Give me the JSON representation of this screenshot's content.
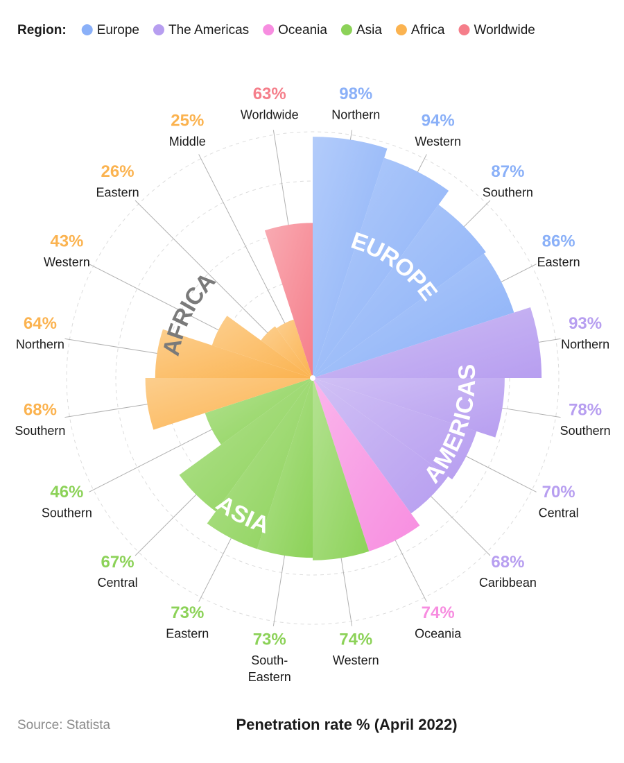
{
  "chart_data": {
    "type": "polar_bar",
    "legend_title": "Region:",
    "caption": "Penetration rate % (April 2022)",
    "source": "Source: Statista",
    "rlim": [
      0,
      100
    ],
    "rticks": [
      40,
      60,
      80,
      100
    ],
    "grid": true,
    "series": [
      {
        "name": "Europe",
        "color": "#8ab0f8",
        "label": "EUROPE",
        "label_color": "#ffffff",
        "categories": [
          "Northern",
          "Western",
          "Southern",
          "Eastern"
        ],
        "values": [
          98,
          94,
          87,
          86
        ],
        "value_labels": [
          "98%",
          "94%",
          "87%",
          "86%"
        ]
      },
      {
        "name": "The Americas",
        "color": "#b79ef0",
        "label": "AMERICAS",
        "label_color": "#ffffff",
        "categories": [
          "Northern",
          "Southern",
          "Central",
          "Caribbean"
        ],
        "values": [
          93,
          78,
          70,
          68
        ],
        "value_labels": [
          "93%",
          "78%",
          "70%",
          "68%"
        ]
      },
      {
        "name": "Oceania",
        "color": "#f78de0",
        "categories": [
          "Oceania"
        ],
        "values": [
          74
        ],
        "value_labels": [
          "74%"
        ]
      },
      {
        "name": "Asia",
        "color": "#8cd258",
        "label": "ASIA",
        "label_color": "#ffffff",
        "categories": [
          "Western",
          "South-Eastern",
          "Eastern",
          "Central",
          "Southern"
        ],
        "values": [
          74,
          73,
          73,
          67,
          46
        ],
        "value_labels": [
          "74%",
          "73%",
          "73%",
          "67%",
          "46%"
        ]
      },
      {
        "name": "Africa",
        "color": "#fbb350",
        "label": "AFRICA",
        "label_color": "#7a7a7a",
        "categories": [
          "Southern",
          "Northern",
          "Western",
          "Eastern",
          "Middle"
        ],
        "values": [
          68,
          64,
          43,
          26,
          25
        ],
        "value_labels": [
          "68%",
          "64%",
          "43%",
          "26%",
          "25%"
        ]
      },
      {
        "name": "Worldwide",
        "color": "#f57e8a",
        "categories": [
          "Worldwide"
        ],
        "values": [
          63
        ],
        "value_labels": [
          "63%"
        ]
      }
    ]
  }
}
